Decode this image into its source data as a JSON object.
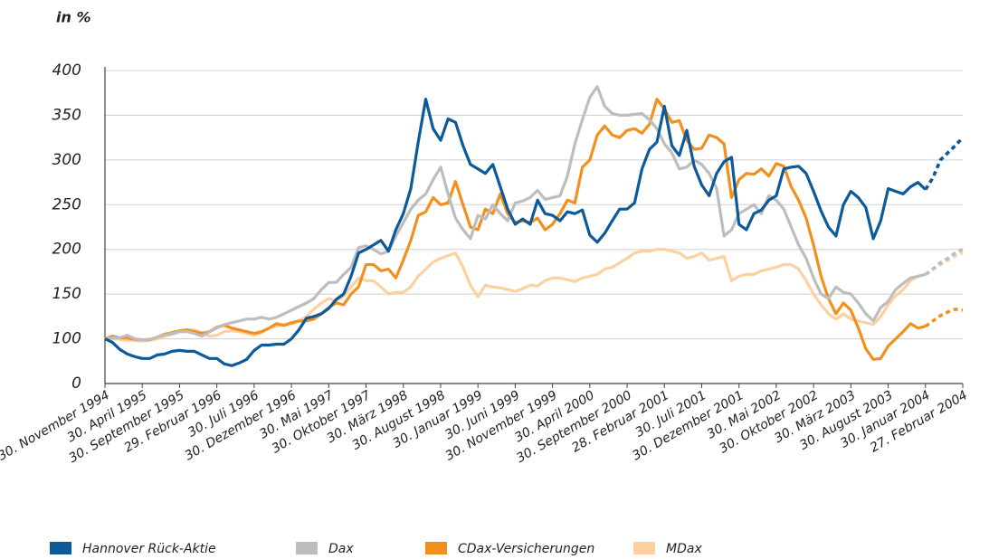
{
  "chart_data": {
    "type": "line",
    "y_label": "in %",
    "categories": [
      "30. November 1994",
      null,
      null,
      null,
      null,
      "30. April 1995",
      null,
      null,
      null,
      null,
      "30. September 1995",
      null,
      null,
      null,
      null,
      "29. Februar 1996",
      null,
      null,
      null,
      null,
      "30. Juli 1996",
      null,
      null,
      null,
      null,
      "30. Dezember 1996",
      null,
      null,
      null,
      null,
      "30. Mai 1997",
      null,
      null,
      null,
      null,
      "30. Oktober 1997",
      null,
      null,
      null,
      null,
      "30. März 1998",
      null,
      null,
      null,
      null,
      "30. August 1998",
      null,
      null,
      null,
      null,
      "30. Januar 1999",
      null,
      null,
      null,
      null,
      "30. Juni 1999",
      null,
      null,
      null,
      null,
      "30. November 1999",
      null,
      null,
      null,
      null,
      "30. April 2000",
      null,
      null,
      null,
      null,
      "30. September 2000",
      null,
      null,
      null,
      null,
      "28. Februar 2001",
      null,
      null,
      null,
      null,
      "30. Juli 2001",
      null,
      null,
      null,
      null,
      "30. Dezember 2001",
      null,
      null,
      null,
      null,
      "30. Mai 2002",
      null,
      null,
      null,
      null,
      "30. Oktober 2002",
      null,
      null,
      null,
      null,
      "30. März 2003",
      null,
      null,
      null,
      null,
      "30. August 2003",
      null,
      null,
      null,
      null,
      "30. Januar 2004",
      null,
      null,
      null,
      null,
      "27. Februar 2004"
    ],
    "series": [
      {
        "name": "Hannover Rück-Aktie",
        "color": "#0d5a9a",
        "values": [
          100,
          92,
          76,
          66,
          60,
          56,
          56,
          64,
          66,
          72,
          74,
          72,
          72,
          64,
          56,
          56,
          44,
          40,
          46,
          54,
          74,
          86,
          86,
          88,
          88,
          100,
          110,
          123,
          125,
          128,
          134,
          144,
          150,
          170,
          196,
          200,
          205,
          210,
          198,
          222,
          240,
          268,
          320,
          368,
          335,
          322,
          346,
          342,
          316,
          295,
          290,
          285,
          295,
          270,
          245,
          228,
          234,
          228,
          255,
          240,
          238,
          232,
          242,
          240,
          244,
          216,
          208,
          218,
          232,
          245,
          245,
          252,
          290,
          312,
          320,
          360,
          316,
          305,
          333,
          293,
          272,
          260,
          285,
          298,
          303,
          228,
          222,
          240,
          244,
          255,
          260,
          290,
          292,
          293,
          285,
          265,
          243,
          225,
          215,
          250,
          265,
          258,
          247,
          212,
          232,
          268,
          265,
          262,
          270,
          275,
          267,
          280,
          300,
          308,
          316,
          325
        ]
      },
      {
        "name": "Dax",
        "color": "#bdbdbd",
        "values": [
          100,
          101,
          101,
          104,
          100,
          98,
          99,
          102,
          104,
          106,
          108,
          108,
          106,
          103,
          108,
          112,
          116,
          118,
          120,
          122,
          122,
          124,
          122,
          124,
          128,
          132,
          136,
          140,
          145,
          155,
          163,
          163,
          172,
          180,
          202,
          204,
          200,
          195,
          198,
          215,
          230,
          245,
          255,
          262,
          278,
          292,
          262,
          235,
          222,
          212,
          238,
          234,
          250,
          240,
          232,
          252,
          254,
          258,
          266,
          256,
          258,
          260,
          282,
          318,
          345,
          370,
          382,
          360,
          352,
          350,
          350,
          351,
          352,
          345,
          335,
          318,
          308,
          290,
          292,
          300,
          295,
          285,
          268,
          215,
          222,
          240,
          245,
          250,
          240,
          260,
          255,
          245,
          225,
          205,
          190,
          168,
          150,
          145,
          158,
          152,
          150,
          140,
          128,
          120,
          135,
          142,
          155,
          162,
          168,
          170,
          172,
          178,
          185,
          190,
          196,
          200
        ]
      },
      {
        "name": "CDax-Versicherungen",
        "color": "#f3901d",
        "values": [
          100,
          103,
          101,
          101,
          99,
          98,
          98,
          102,
          105,
          107,
          109,
          110,
          108,
          106,
          108,
          113,
          115,
          112,
          110,
          108,
          106,
          108,
          112,
          117,
          115,
          118,
          120,
          120,
          122,
          128,
          135,
          140,
          138,
          150,
          158,
          183,
          183,
          176,
          178,
          168,
          188,
          210,
          238,
          242,
          258,
          250,
          252,
          276,
          250,
          225,
          222,
          245,
          240,
          262,
          240,
          230,
          232,
          230,
          235,
          222,
          228,
          240,
          255,
          252,
          292,
          300,
          328,
          338,
          328,
          325,
          333,
          335,
          330,
          340,
          368,
          357,
          342,
          344,
          322,
          312,
          313,
          328,
          325,
          318,
          258,
          278,
          285,
          284,
          290,
          282,
          296,
          293,
          270,
          255,
          235,
          205,
          170,
          145,
          128,
          140,
          132,
          112,
          78,
          54,
          56,
          84,
          100,
          108,
          117,
          112,
          114,
          120,
          126,
          130,
          133,
          132
        ]
      },
      {
        "name": "MDax",
        "color": "#fdd0a0",
        "values": [
          100,
          100,
          99,
          97,
          96,
          95,
          97,
          100,
          103,
          105,
          108,
          110,
          110,
          107,
          103,
          104,
          108,
          109,
          108,
          106,
          104,
          107,
          112,
          114,
          116,
          116,
          120,
          125,
          133,
          140,
          145,
          142,
          148,
          158,
          168,
          165,
          165,
          158,
          150,
          152,
          152,
          158,
          170,
          178,
          186,
          190,
          193,
          196,
          180,
          160,
          147,
          160,
          158,
          157,
          155,
          153,
          156,
          160,
          159,
          165,
          168,
          168,
          166,
          164,
          168,
          170,
          172,
          178,
          180,
          185,
          190,
          196,
          198,
          198,
          200,
          200,
          198,
          196,
          190,
          192,
          196,
          188,
          190,
          192,
          165,
          170,
          172,
          172,
          176,
          178,
          180,
          183,
          183,
          178,
          165,
          150,
          138,
          128,
          122,
          128,
          122,
          120,
          118,
          116,
          125,
          138,
          148,
          155,
          165,
          170,
          172,
          178,
          183,
          188,
          193,
          196
        ]
      }
    ],
    "dashed_from": 110,
    "ylim": [
      0,
      400
    ],
    "yticks": [
      0,
      100,
      150,
      200,
      250,
      300,
      350,
      400
    ],
    "yscale": "piecewise",
    "grid": true
  }
}
